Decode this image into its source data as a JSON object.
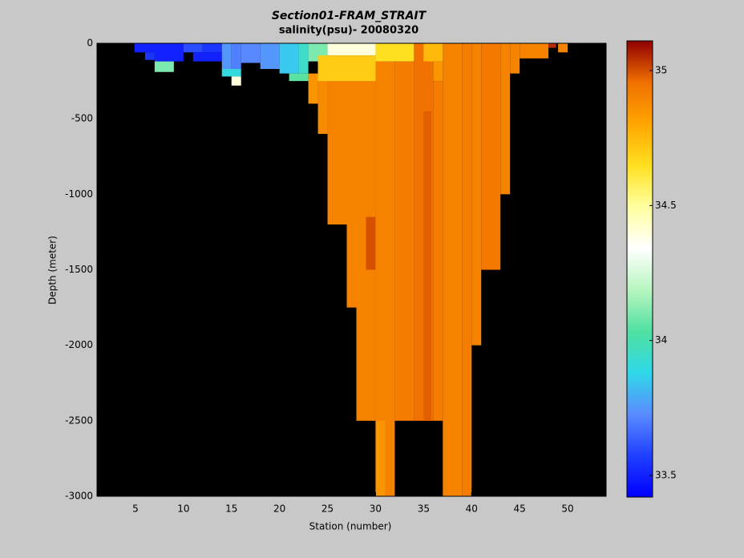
{
  "chart_data": {
    "type": "heatmap",
    "title": "Section01-FRAM_STRAIT",
    "subtitle": "salinity(psu)- 20080320",
    "x_label": "Station (number)",
    "y_label": "Depth (meter)",
    "xlim": [
      1,
      54
    ],
    "ylim": [
      -3000,
      0
    ],
    "xticks": [
      5,
      10,
      15,
      20,
      25,
      30,
      35,
      40,
      45,
      50
    ],
    "yticks": [
      0,
      -500,
      -1000,
      -1500,
      -2000,
      -2500,
      -3000
    ],
    "clim": [
      33.42,
      35.11
    ],
    "cticks": [
      33.5,
      34,
      34.5,
      35
    ],
    "background": "#000000",
    "colormap": [
      "#0000ff",
      "#2040ff",
      "#5a8cff",
      "#30d8e8",
      "#50e0a0",
      "#b8f5c0",
      "#ffffff",
      "#ffffa0",
      "#ffe020",
      "#ffa500",
      "#f07000",
      "#900000"
    ],
    "cells": [
      {
        "x": [
          4.9,
          8
        ],
        "depth": [
          0,
          -60
        ],
        "value": 33.5
      },
      {
        "x": [
          6,
          7
        ],
        "depth": [
          -60,
          -110
        ],
        "value": 33.55
      },
      {
        "x": [
          7,
          10
        ],
        "depth": [
          0,
          -120
        ],
        "value": 33.5
      },
      {
        "x": [
          7,
          9
        ],
        "depth": [
          -120,
          -190
        ],
        "value": 34.1
      },
      {
        "x": [
          10,
          12
        ],
        "depth": [
          0,
          -60
        ],
        "value": 33.6
      },
      {
        "x": [
          11,
          14
        ],
        "depth": [
          -60,
          -120
        ],
        "value": 33.5
      },
      {
        "x": [
          12,
          14
        ],
        "depth": [
          0,
          -60
        ],
        "value": 33.55
      },
      {
        "x": [
          14,
          15
        ],
        "depth": [
          0,
          -170
        ],
        "value": 33.75
      },
      {
        "x": [
          14,
          16
        ],
        "depth": [
          -170,
          -220
        ],
        "value": 33.9
      },
      {
        "x": [
          15,
          16
        ],
        "depth": [
          -220,
          -280
        ],
        "value": 34.4
      },
      {
        "x": [
          15,
          16
        ],
        "depth": [
          0,
          -170
        ],
        "value": 33.7
      },
      {
        "x": [
          16,
          18
        ],
        "depth": [
          0,
          -130
        ],
        "value": 33.72
      },
      {
        "x": [
          18,
          20
        ],
        "depth": [
          0,
          -170
        ],
        "value": 33.75
      },
      {
        "x": [
          20,
          22
        ],
        "depth": [
          0,
          -200
        ],
        "value": 33.85
      },
      {
        "x": [
          21,
          23
        ],
        "depth": [
          -200,
          -250
        ],
        "value": 34.05
      },
      {
        "x": [
          22,
          23
        ],
        "depth": [
          0,
          -200
        ],
        "value": 33.95
      },
      {
        "x": [
          23,
          25
        ],
        "depth": [
          0,
          -120
        ],
        "value": 34.1
      },
      {
        "x": [
          23,
          24
        ],
        "depth": [
          -200,
          -400
        ],
        "value": 34.85
      },
      {
        "x": [
          24,
          25
        ],
        "depth": [
          -120,
          -600
        ],
        "value": 34.88
      },
      {
        "x": [
          25,
          27
        ],
        "depth": [
          -120,
          -1200
        ],
        "value": 34.9
      },
      {
        "x": [
          27,
          28
        ],
        "depth": [
          -120,
          -1750
        ],
        "value": 34.9
      },
      {
        "x": [
          28,
          30
        ],
        "depth": [
          -120,
          -2500
        ],
        "value": 34.9
      },
      {
        "x": [
          30,
          32
        ],
        "depth": [
          -120,
          -3000
        ],
        "value": 34.9
      },
      {
        "x": [
          32,
          34
        ],
        "depth": [
          -120,
          -2500
        ],
        "value": 34.92
      },
      {
        "x": [
          34,
          36
        ],
        "depth": [
          0,
          -2500
        ],
        "value": 34.95
      },
      {
        "x": [
          36,
          37
        ],
        "depth": [
          -250,
          -2500
        ],
        "value": 34.92
      },
      {
        "x": [
          37,
          39
        ],
        "depth": [
          0,
          -3000
        ],
        "value": 34.9
      },
      {
        "x": [
          39,
          40
        ],
        "depth": [
          0,
          -3000
        ],
        "value": 34.92
      },
      {
        "x": [
          40,
          41
        ],
        "depth": [
          0,
          -2000
        ],
        "value": 34.9
      },
      {
        "x": [
          41,
          43
        ],
        "depth": [
          0,
          -1500
        ],
        "value": 34.93
      },
      {
        "x": [
          43,
          44
        ],
        "depth": [
          0,
          -1000
        ],
        "value": 34.9
      },
      {
        "x": [
          44,
          45
        ],
        "depth": [
          0,
          -200
        ],
        "value": 34.9
      },
      {
        "x": [
          45,
          48
        ],
        "depth": [
          0,
          -100
        ],
        "value": 34.9
      },
      {
        "x": [
          25,
          30
        ],
        "depth": [
          0,
          -80
        ],
        "value": 34.4
      },
      {
        "x": [
          24,
          30
        ],
        "depth": [
          -80,
          -250
        ],
        "value": 34.7
      },
      {
        "x": [
          30,
          34
        ],
        "depth": [
          0,
          -120
        ],
        "value": 34.65
      },
      {
        "x": [
          35,
          37
        ],
        "depth": [
          0,
          -120
        ],
        "value": 34.75
      },
      {
        "x": [
          36,
          37
        ],
        "depth": [
          -120,
          -250
        ],
        "value": 34.85
      },
      {
        "x": [
          29,
          30
        ],
        "depth": [
          -1150,
          -1500
        ],
        "value": 35.0
      },
      {
        "x": [
          30,
          31
        ],
        "depth": [
          -2500,
          -3000
        ],
        "value": 34.85
      },
      {
        "x": [
          35,
          35.8
        ],
        "depth": [
          -450,
          -2500
        ],
        "value": 34.98
      },
      {
        "x": [
          48,
          48.8
        ],
        "depth": [
          0,
          -30
        ],
        "value": 35.05
      },
      {
        "x": [
          49,
          50
        ],
        "depth": [
          0,
          -60
        ],
        "value": 34.9
      }
    ]
  }
}
